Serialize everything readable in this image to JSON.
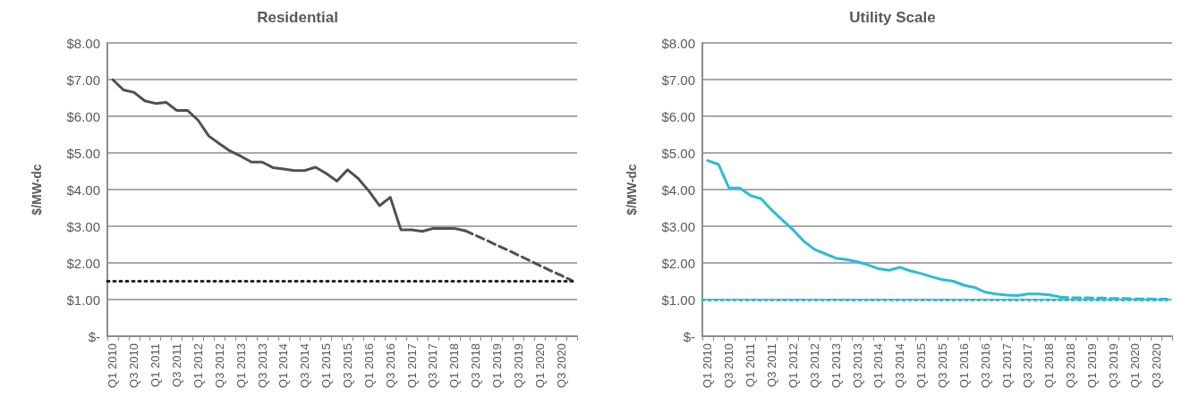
{
  "chart_data": [
    {
      "type": "line",
      "title": "Residential",
      "ylabel": "$/MW-dc",
      "categories": [
        "Q1 2010",
        null,
        "Q3 2010",
        null,
        "Q1 2011",
        null,
        "Q3 2011",
        null,
        "Q1 2012",
        null,
        "Q3 2012",
        null,
        "Q1 2013",
        null,
        "Q3 2013",
        null,
        "Q1 2014",
        null,
        "Q3 2014",
        null,
        "Q1 2015",
        null,
        "Q3 2015",
        null,
        "Q1 2016",
        null,
        "Q3 2016",
        null,
        "Q1 2017",
        null,
        "Q3 2017",
        null,
        "Q1 2018",
        null,
        "Q3 2018",
        null,
        "Q1 2019",
        null,
        "Q3 2019",
        null,
        "Q1 2020",
        null,
        "Q3 2020",
        null
      ],
      "series": [
        {
          "color": "#505050",
          "line_style": "solid",
          "values": [
            7.0,
            6.72,
            6.65,
            6.42,
            6.35,
            6.38,
            6.16,
            6.16,
            5.89,
            5.46,
            5.25,
            5.05,
            4.91,
            4.75,
            4.75,
            4.6,
            4.56,
            4.52,
            4.52,
            4.61,
            4.44,
            4.23,
            4.54,
            4.3,
            3.96,
            3.56,
            3.79,
            2.9,
            2.9,
            2.86,
            2.94,
            2.94,
            2.94,
            2.88,
            null,
            null,
            null,
            null,
            null,
            null,
            null,
            null,
            null,
            null
          ]
        },
        {
          "color": "#505050",
          "line_style": "dashed",
          "values": [
            null,
            null,
            null,
            null,
            null,
            null,
            null,
            null,
            null,
            null,
            null,
            null,
            null,
            null,
            null,
            null,
            null,
            null,
            null,
            null,
            null,
            null,
            null,
            null,
            null,
            null,
            null,
            null,
            null,
            null,
            null,
            null,
            null,
            2.88,
            2.75,
            2.62,
            2.48,
            2.35,
            2.21,
            2.07,
            1.93,
            1.79,
            1.66,
            1.52
          ]
        }
      ],
      "ref_lines": [
        {
          "axis": "y",
          "value": 1.5,
          "color": "#202020",
          "line_style": "dotted"
        }
      ],
      "ylim": [
        0,
        8
      ],
      "yticks": [
        {
          "value": 0,
          "label": "$-"
        },
        {
          "value": 1,
          "label": "$1.00"
        },
        {
          "value": 2,
          "label": "$2.00"
        },
        {
          "value": 3,
          "label": "$3.00"
        },
        {
          "value": 4,
          "label": "$4.00"
        },
        {
          "value": 5,
          "label": "$5.00"
        },
        {
          "value": 6,
          "label": "$6.00"
        },
        {
          "value": 7,
          "label": "$7.00"
        },
        {
          "value": 8,
          "label": "$8.00"
        }
      ],
      "grid": "y",
      "marker": "none"
    },
    {
      "type": "line",
      "title": "Utility Scale",
      "ylabel": "$/MW-dc",
      "categories": [
        "Q1 2010",
        null,
        "Q3 2010",
        null,
        "Q1 2011",
        null,
        "Q3 2011",
        null,
        "Q1 2012",
        null,
        "Q3 2012",
        null,
        "Q1 2013",
        null,
        "Q3 2013",
        null,
        "Q1 2014",
        null,
        "Q3 2014",
        null,
        "Q1 2015",
        null,
        "Q3 2015",
        null,
        "Q1 2016",
        null,
        "Q3 2016",
        null,
        "Q1 2017",
        null,
        "Q3 2017",
        null,
        "Q1 2018",
        null,
        "Q3 2018",
        null,
        "Q1 2019",
        null,
        "Q3 2019",
        null,
        "Q1 2020",
        null,
        "Q3 2020",
        null
      ],
      "series": [
        {
          "color": "#2bbcd6",
          "line_style": "solid",
          "values": [
            4.79,
            4.69,
            4.04,
            4.04,
            3.84,
            3.75,
            3.44,
            3.17,
            2.9,
            2.59,
            2.37,
            2.25,
            2.13,
            2.09,
            2.03,
            1.95,
            1.84,
            1.8,
            1.88,
            1.78,
            1.71,
            1.62,
            1.54,
            1.5,
            1.39,
            1.33,
            1.2,
            1.15,
            1.12,
            1.11,
            1.15,
            1.15,
            1.13,
            1.07,
            null,
            null,
            null,
            null,
            null,
            null,
            null,
            null,
            null,
            null
          ]
        },
        {
          "color": "#2bbcd6",
          "line_style": "dashed",
          "values": [
            null,
            null,
            null,
            null,
            null,
            null,
            null,
            null,
            null,
            null,
            null,
            null,
            null,
            null,
            null,
            null,
            null,
            null,
            null,
            null,
            null,
            null,
            null,
            null,
            null,
            null,
            null,
            null,
            null,
            null,
            null,
            null,
            null,
            1.07,
            1.05,
            1.05,
            1.04,
            1.04,
            1.03,
            1.03,
            1.02,
            1.02,
            1.01,
            1.01
          ]
        }
      ],
      "ref_lines": [
        {
          "axis": "y",
          "value": 1.0,
          "color": "#2bbcd6",
          "line_style": "dotted"
        }
      ],
      "ylim": [
        0,
        8
      ],
      "yticks": [
        {
          "value": 0,
          "label": "$-"
        },
        {
          "value": 1,
          "label": "$1.00"
        },
        {
          "value": 2,
          "label": "$2.00"
        },
        {
          "value": 3,
          "label": "$3.00"
        },
        {
          "value": 4,
          "label": "$4.00"
        },
        {
          "value": 5,
          "label": "$5.00"
        },
        {
          "value": 6,
          "label": "$6.00"
        },
        {
          "value": 7,
          "label": "$7.00"
        },
        {
          "value": 8,
          "label": "$8.00"
        }
      ],
      "grid": "y",
      "marker": "none"
    }
  ]
}
